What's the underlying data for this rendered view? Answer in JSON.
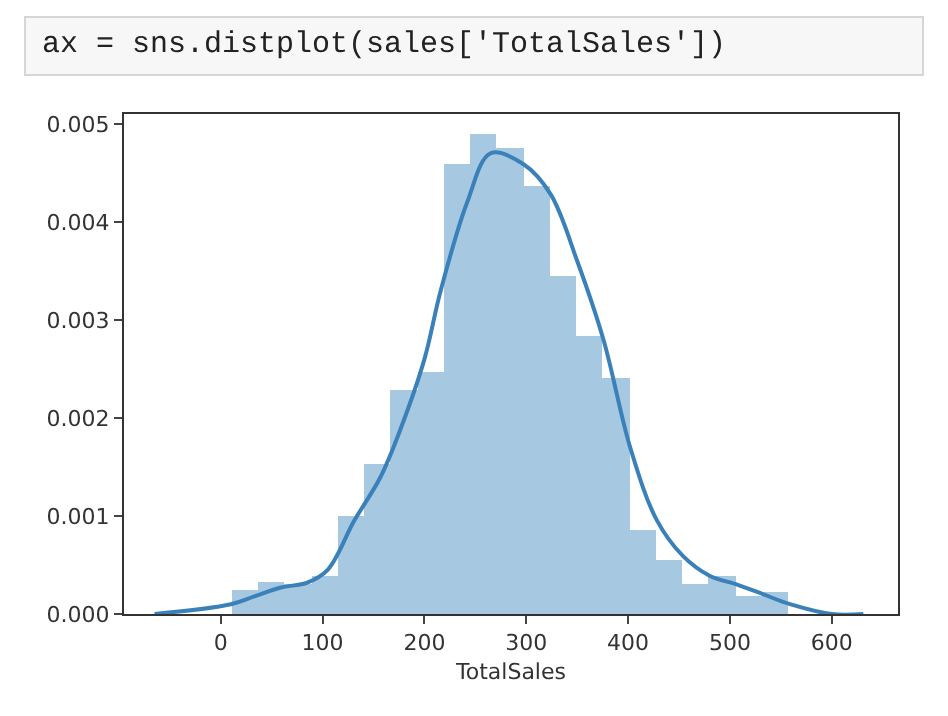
{
  "chart_data": {
    "type": "histogram",
    "title": "ax = sns.distplot(sales['TotalSales'])",
    "xlabel": "TotalSales",
    "series": [
      {
        "color": "#a6c8e1",
        "bins": [
          11,
          37,
          63,
          89,
          115,
          141,
          167,
          193,
          219,
          245,
          271,
          297,
          323,
          349,
          375,
          401,
          427,
          453,
          479,
          505,
          531,
          557
        ],
        "values": [
          0.00024,
          0.00032,
          0.00031,
          0.00039,
          0.00099,
          0.00154,
          0.00229,
          0.00246,
          0.00458,
          0.00489,
          0.00475,
          0.00436,
          0.00345,
          0.00284,
          0.0024,
          0.00086,
          0.00055,
          0.00031,
          0.00038,
          0.00018,
          0.00023
        ]
      },
      {
        "type": "line",
        "color": "#3a80b9",
        "x": [
          -65,
          10,
          33,
          59,
          85,
          105,
          131,
          157,
          177,
          200,
          216,
          242,
          265,
          297,
          324,
          350,
          376,
          402,
          428,
          454,
          480,
          507,
          533,
          559,
          600,
          631
        ],
        "values": [
          0,
          0.0001,
          0.00018,
          0.00027,
          0.00032,
          0.00045,
          0.00095,
          0.0014,
          0.0019,
          0.0026,
          0.0033,
          0.0042,
          0.0047,
          0.00459,
          0.00428,
          0.0036,
          0.00279,
          0.0017,
          0.00096,
          0.00059,
          0.00039,
          0.0003,
          0.0002,
          0.0001,
          0,
          0
        ]
      }
    ],
    "xlim": [
      -95,
      665
    ],
    "xticks": [
      0,
      100,
      200,
      300,
      400,
      500,
      600
    ],
    "ylim": [
      0,
      0.0051
    ],
    "yticks": [
      {
        "value": 0,
        "label": "0.000"
      },
      0.001,
      0.002,
      0.003,
      0.004,
      0.005
    ],
    "grid": false
  }
}
